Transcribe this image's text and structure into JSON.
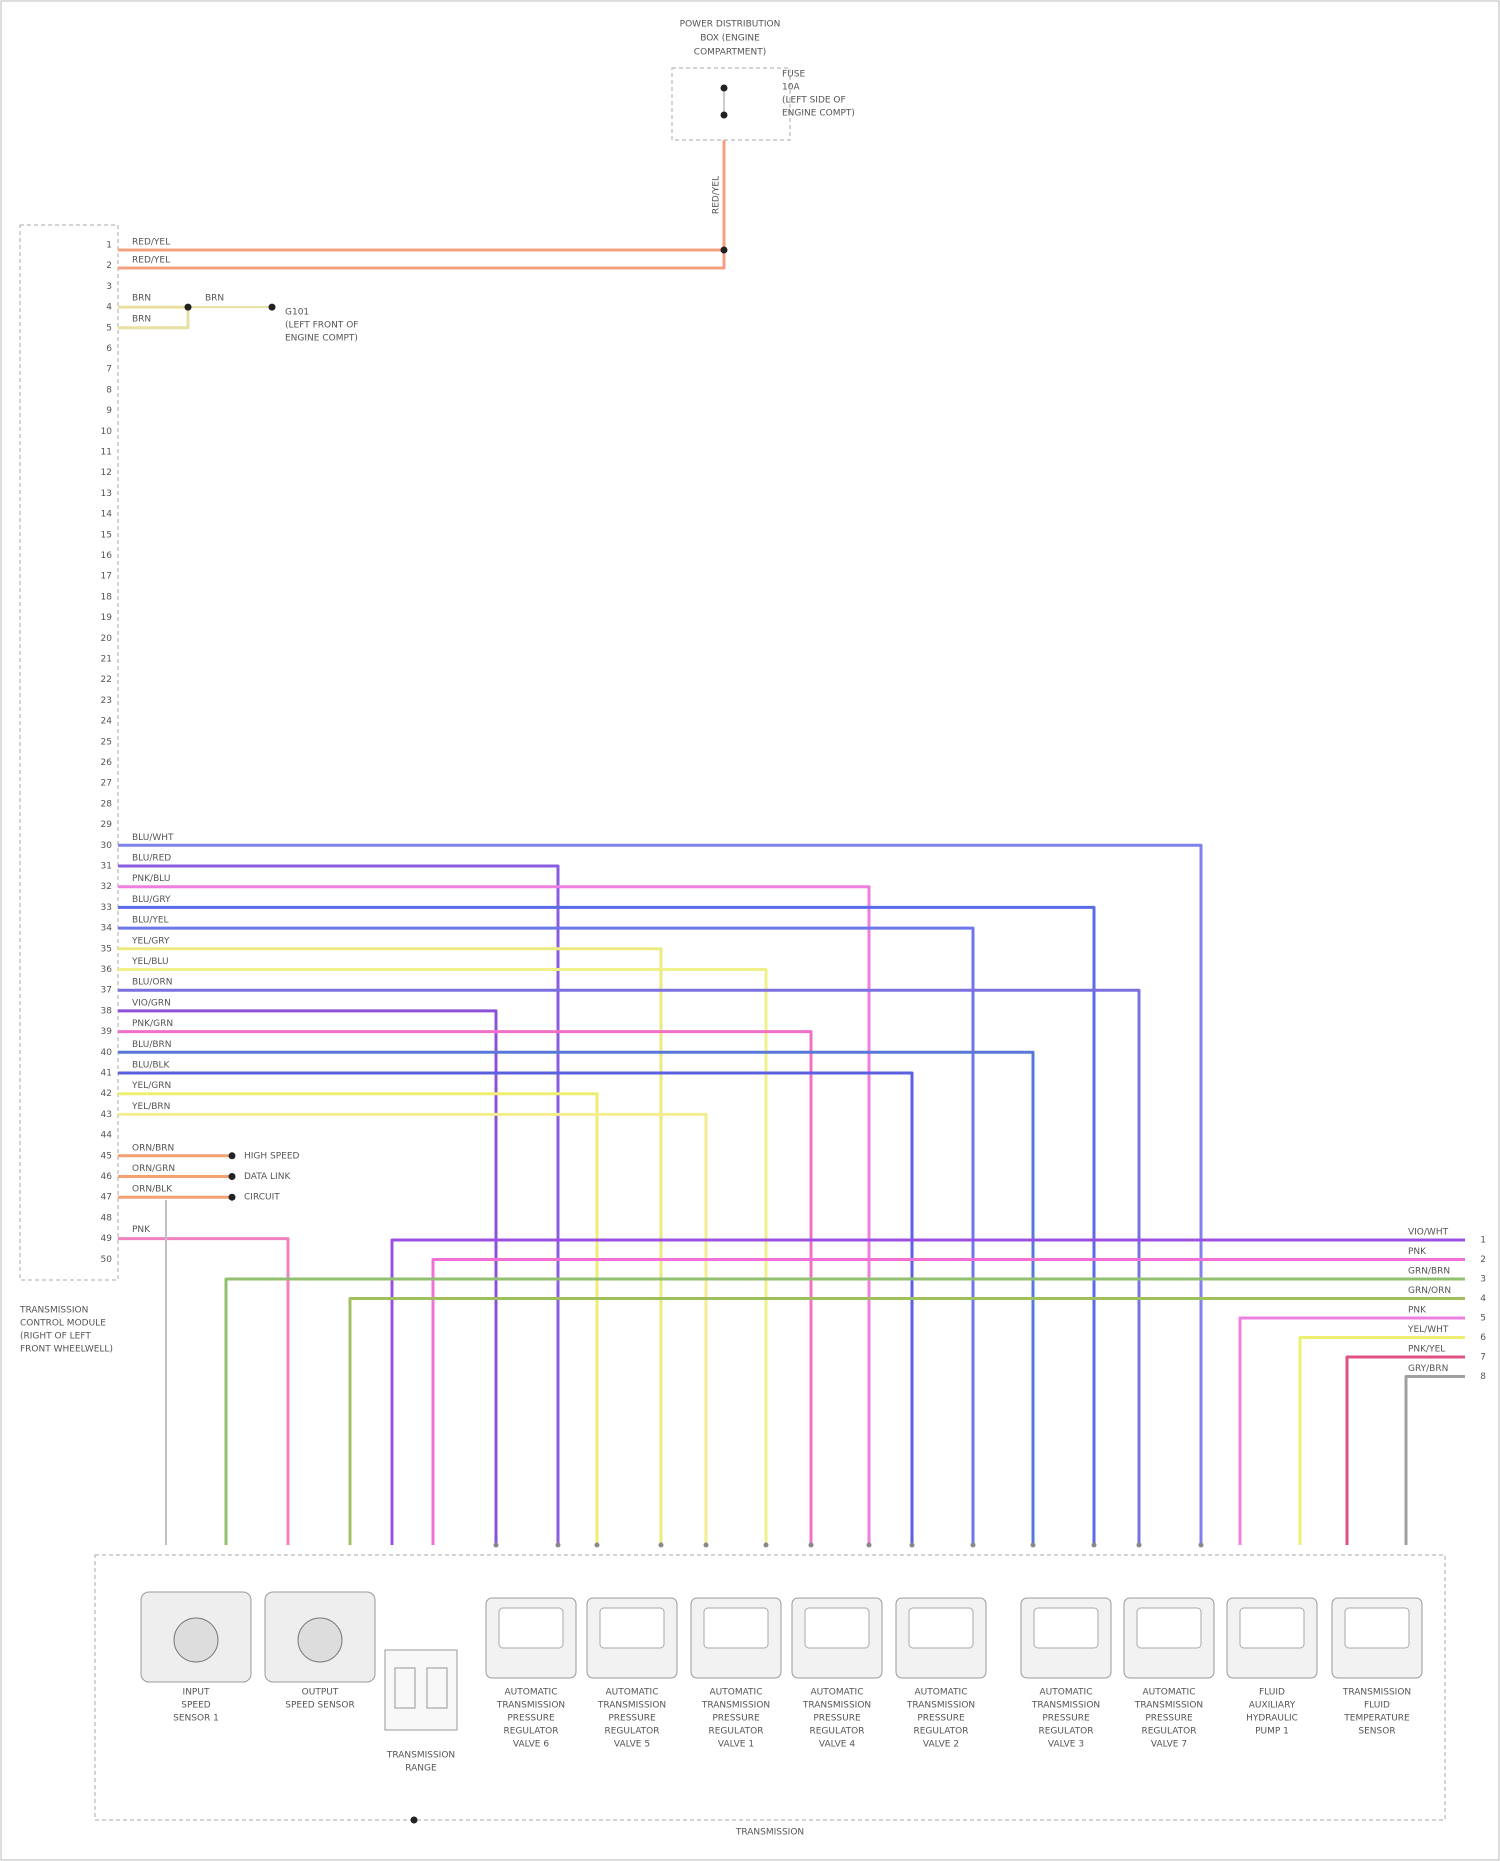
{
  "power_box": {
    "title": [
      "POWER DISTRIBUTION",
      "BOX (ENGINE",
      "COMPARTMENT)"
    ],
    "fuse": [
      "FUSE",
      "10A",
      "(LEFT SIDE OF",
      "ENGINE COMPT)"
    ],
    "wire": "RED/YEL"
  },
  "module": {
    "label": [
      "TRANSMISSION",
      "CONTROL MODULE",
      "(RIGHT OF LEFT",
      "FRONT WHEELWELL)"
    ],
    "pins": [
      "1",
      "2",
      "3",
      "4",
      "5",
      "6",
      "7",
      "8",
      "9",
      "10",
      "11",
      "12",
      "13",
      "14",
      "15",
      "16",
      "17",
      "18",
      "19",
      "20",
      "21",
      "22",
      "23",
      "24",
      "25",
      "26",
      "27",
      "28",
      "29",
      "30",
      "31",
      "32",
      "33",
      "34",
      "35",
      "36",
      "37",
      "38",
      "39",
      "40",
      "41",
      "42",
      "43",
      "44",
      "45",
      "46",
      "47",
      "48",
      "49",
      "50"
    ]
  },
  "power_wires": [
    "RED/YEL",
    "RED/YEL"
  ],
  "ground": {
    "wires": [
      "BRN",
      "BRN"
    ],
    "splice_wire": "BRN",
    "label": [
      "G101",
      "(LEFT FRONT OF",
      "ENGINE COMPT)"
    ]
  },
  "signal_wires": [
    {
      "label": "BLU/WHT",
      "color": "#8080ee"
    },
    {
      "label": "BLU/RED",
      "color": "#8a5ce0"
    },
    {
      "label": "PNK/BLU",
      "color": "#ee7ee0"
    },
    {
      "label": "BLU/GRY",
      "color": "#5a6ae8"
    },
    {
      "label": "BLU/YEL",
      "color": "#6f78ea"
    },
    {
      "label": "YEL/GRY",
      "color": "#eaea80"
    },
    {
      "label": "YEL/BLU",
      "color": "#f0f08a"
    },
    {
      "label": "BLU/ORN",
      "color": "#7a70e0"
    },
    {
      "label": "VIO/GRN",
      "color": "#8d50d8"
    },
    {
      "label": "PNK/GRN",
      "color": "#f070c8"
    },
    {
      "label": "BLU/BRN",
      "color": "#5878d8"
    },
    {
      "label": "BLU/BLK",
      "color": "#5a60e0"
    },
    {
      "label": "YEL/GRN",
      "color": "#eeee70"
    },
    {
      "label": "YEL/BRN",
      "color": "#f2ee90"
    }
  ],
  "can_wires": [
    "ORN/BRN",
    "ORN/GRN",
    "ORN/BLK"
  ],
  "can_label": [
    "HIGH SPEED",
    "DATA LINK",
    "CIRCUIT"
  ],
  "pink_wire": "PNK",
  "harness": {
    "labels": [
      "VIO/WHT",
      "PNK",
      "GRN/BRN",
      "GRN/ORN",
      "PNK",
      "YEL/WHT",
      "PNK/YEL",
      "GRY/BRN"
    ],
    "pins": [
      "1",
      "2",
      "3",
      "4",
      "5",
      "6",
      "7",
      "8"
    ],
    "colors": [
      "#9a50e0",
      "#f070d8",
      "#90c070",
      "#a0c060",
      "#ee80e0",
      "#eeee70",
      "#e05080",
      "#a0a0a0"
    ]
  },
  "components": [
    {
      "lines": [
        "INPUT",
        "SPEED",
        "SENSOR 1"
      ]
    },
    {
      "lines": [
        "OUTPUT",
        "SPEED SENSOR"
      ]
    },
    {
      "lines": [
        "TRANSMISSION",
        "RANGE"
      ]
    },
    {
      "lines": [
        "AUTOMATIC",
        "TRANSMISSION",
        "PRESSURE",
        "REGULATOR",
        "VALVE 6"
      ]
    },
    {
      "lines": [
        "AUTOMATIC",
        "TRANSMISSION",
        "PRESSURE",
        "REGULATOR",
        "VALVE 5"
      ]
    },
    {
      "lines": [
        "AUTOMATIC",
        "TRANSMISSION",
        "PRESSURE",
        "REGULATOR",
        "VALVE 1"
      ]
    },
    {
      "lines": [
        "AUTOMATIC",
        "TRANSMISSION",
        "PRESSURE",
        "REGULATOR",
        "VALVE 4"
      ]
    },
    {
      "lines": [
        "AUTOMATIC",
        "TRANSMISSION",
        "PRESSURE",
        "REGULATOR",
        "VALVE 2"
      ]
    },
    {
      "lines": [
        "AUTOMATIC",
        "TRANSMISSION",
        "PRESSURE",
        "REGULATOR",
        "VALVE 3"
      ]
    },
    {
      "lines": [
        "AUTOMATIC",
        "TRANSMISSION",
        "PRESSURE",
        "REGULATOR",
        "VALVE 7"
      ]
    },
    {
      "lines": [
        "FLUID",
        "AUXILIARY",
        "HYDRAULIC",
        "PUMP 1"
      ]
    },
    {
      "lines": [
        "TRANSMISSION",
        "FLUID",
        "TEMPERATURE",
        "SENSOR"
      ]
    }
  ],
  "transmission_label": "TRANSMISSION"
}
